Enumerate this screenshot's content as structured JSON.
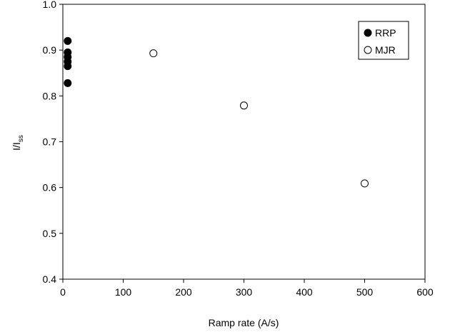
{
  "chart_data": {
    "type": "scatter",
    "xlabel": "Ramp rate (A/s)",
    "ylabel": {
      "main": "I/I",
      "sub": "ss"
    },
    "xlim": [
      0,
      600
    ],
    "ylim": [
      0.4,
      1.0
    ],
    "xticks": [
      0,
      100,
      200,
      300,
      400,
      500,
      600
    ],
    "yticks": [
      0.4,
      0.5,
      0.6,
      0.7,
      0.8,
      0.9,
      1.0
    ],
    "xtick_labels": [
      "0",
      "100",
      "200",
      "300",
      "400",
      "500",
      "600"
    ],
    "ytick_labels": [
      "0.4",
      "0.5",
      "0.6",
      "0.7",
      "0.8",
      "0.9",
      "1.0"
    ],
    "grid": false,
    "legend_position": "top-right",
    "series": [
      {
        "name": "RRP",
        "marker": "filled-circle",
        "color": "#000000",
        "points": [
          {
            "x": 8,
            "y": 0.92
          },
          {
            "x": 8,
            "y": 0.895
          },
          {
            "x": 8,
            "y": 0.885
          },
          {
            "x": 8,
            "y": 0.875
          },
          {
            "x": 8,
            "y": 0.865
          },
          {
            "x": 8,
            "y": 0.828
          }
        ]
      },
      {
        "name": "MJR",
        "marker": "open-circle",
        "color": "#000000",
        "points": [
          {
            "x": 150,
            "y": 0.893
          },
          {
            "x": 300,
            "y": 0.779
          },
          {
            "x": 500,
            "y": 0.609
          }
        ]
      }
    ]
  }
}
